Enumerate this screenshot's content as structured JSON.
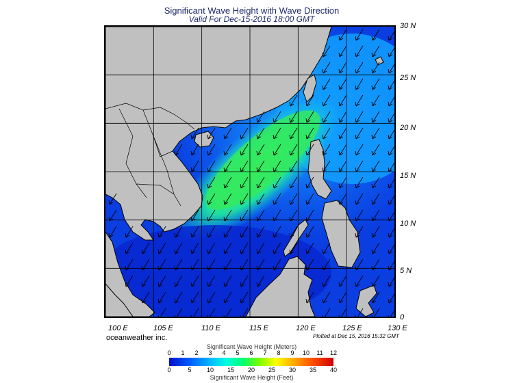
{
  "title": "Significant Wave Height with Wave Direction",
  "subtitle": "Valid For Dec-15-2016 18:00 GMT",
  "map": {
    "lon_range": [
      100,
      130
    ],
    "lat_range": [
      0,
      30
    ],
    "lat_labels": [
      "30 N",
      "25 N",
      "20 N",
      "15 N",
      "10 N",
      "5 N",
      "0"
    ],
    "lon_labels": [
      "100 E",
      "105 E",
      "110 E",
      "115 E",
      "120 E",
      "125 E",
      "130 E"
    ],
    "grid": true,
    "colors": {
      "land": "#c0c0c0",
      "low_wave": "#0a2ad8",
      "mid_wave": "#0a8cff",
      "high_wave": "#22e86a",
      "arrow": "#000000"
    },
    "wave_direction": "arrows pointing southwest (northeast monsoon)"
  },
  "credit": "oceanweather inc.",
  "plotted": "Plotted at Dec 15, 2016 15:32 GMT",
  "colorbar": {
    "title_meters": "Significant Wave Height (Meters)",
    "title_feet": "Significant Wave Height (Feet)",
    "meters_ticks": [
      "0",
      "1",
      "2",
      "3",
      "4",
      "5",
      "6",
      "7",
      "8",
      "9",
      "10",
      "11",
      "12"
    ],
    "feet_ticks": [
      "0",
      "5",
      "10",
      "15",
      "20",
      "25",
      "30",
      "35",
      "40"
    ]
  }
}
